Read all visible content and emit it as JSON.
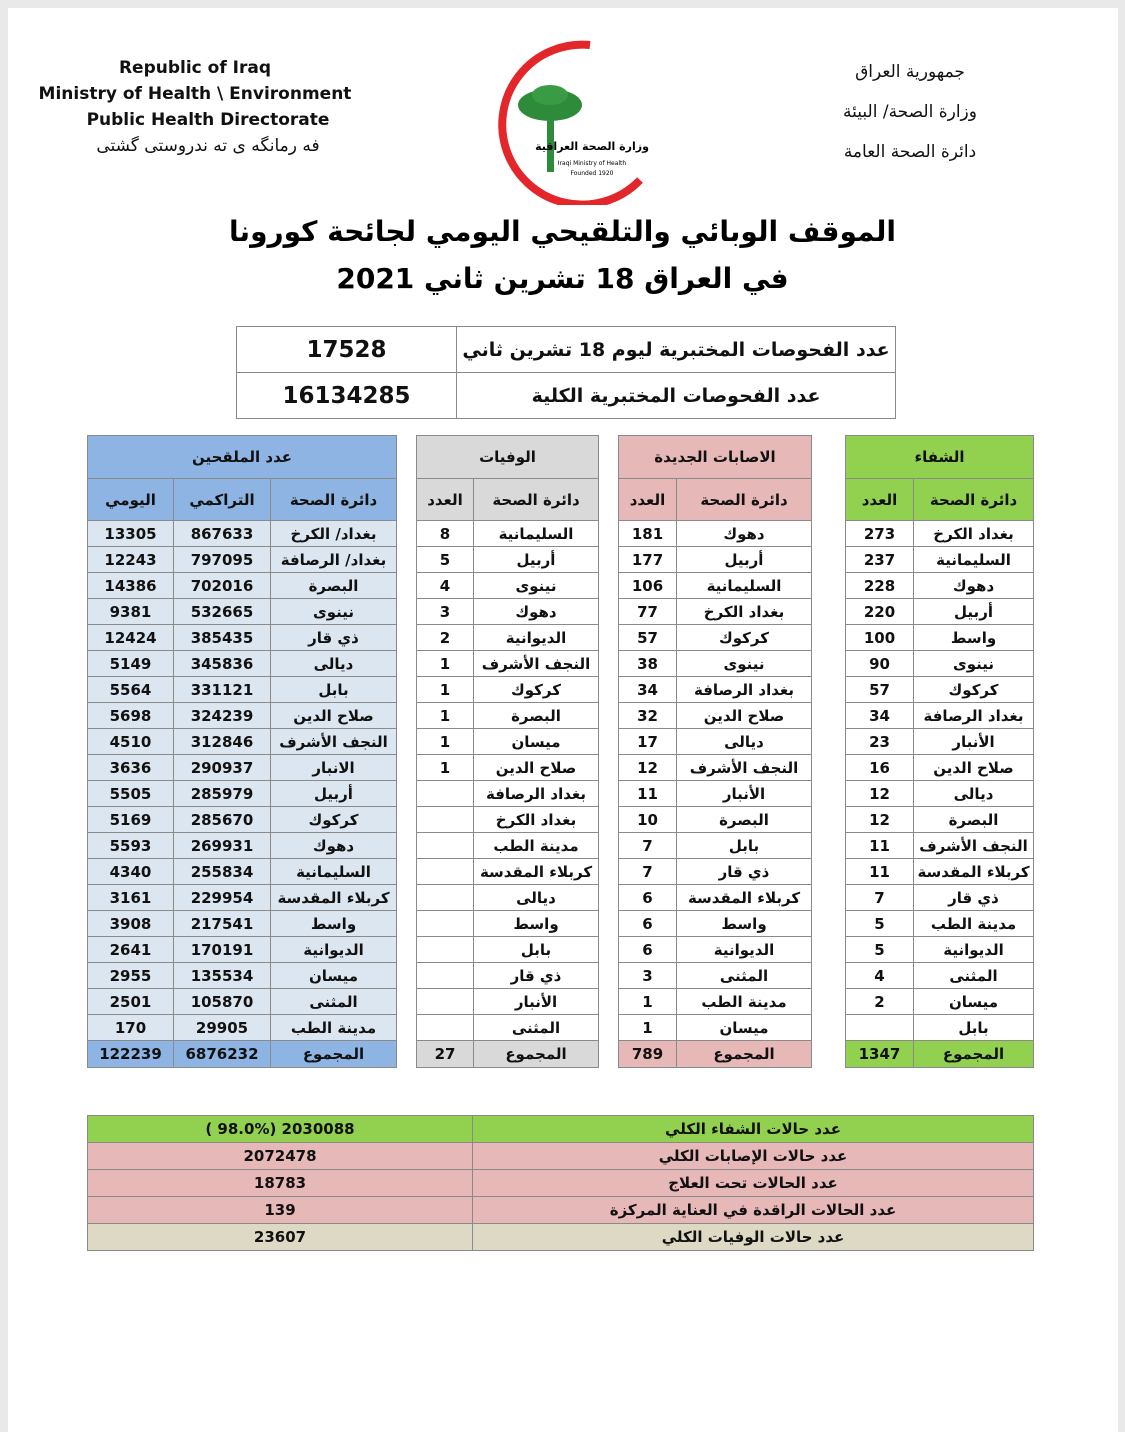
{
  "header": {
    "left_lines": [
      "Republic of Iraq",
      "Ministry of Health \\ Environment",
      "Public Health Directorate",
      "فه رمانگه ی ته ندروستی گشتی"
    ],
    "right_lines": [
      "جمهورية العراق",
      "وزارة الصحة/ البيئة",
      "دائرة الصحة العامة"
    ],
    "logo_lines": [
      "وزارة الصحة العراقية",
      "Iraqi Ministry of Health",
      "Founded 1920"
    ]
  },
  "title_lines": [
    "الموقف الوبائي والتلقيحي اليومي لجائحة كورونا",
    "في العراق  18  تشرين ثاني 2021"
  ],
  "tests": {
    "rows": [
      [
        "عدد الفحوصات المختبرية  ليوم 18 تشرين ثاني",
        17528
      ],
      [
        "عدد الفحوصات المختبرية الكلية",
        16134285
      ]
    ]
  },
  "recovered": {
    "title": "الشفاء",
    "headers": [
      "دائرة الصحة",
      "العدد"
    ],
    "rows": [
      [
        "بغداد الكرخ",
        273
      ],
      [
        "السليمانية",
        237
      ],
      [
        "دهوك",
        228
      ],
      [
        "أربيل",
        220
      ],
      [
        "واسط",
        100
      ],
      [
        "نينوى",
        90
      ],
      [
        "كركوك",
        57
      ],
      [
        "بغداد الرصافة",
        34
      ],
      [
        "الأنبار",
        23
      ],
      [
        "صلاح الدين",
        16
      ],
      [
        "ديالى",
        12
      ],
      [
        "البصرة",
        12
      ],
      [
        "النجف الأشرف",
        11
      ],
      [
        "كربلاء المقدسة",
        11
      ],
      [
        "ذي قار",
        7
      ],
      [
        "مدينة الطب",
        5
      ],
      [
        "الديوانية",
        5
      ],
      [
        "المثنى",
        4
      ],
      [
        "ميسان",
        2
      ],
      [
        "بابل",
        null
      ]
    ],
    "total": [
      "المجموع",
      1347
    ]
  },
  "new_cases": {
    "title": "الاصابات الجديدة",
    "headers": [
      "دائرة الصحة",
      "العدد"
    ],
    "rows": [
      [
        "دهوك",
        181
      ],
      [
        "أربيل",
        177
      ],
      [
        "السليمانية",
        106
      ],
      [
        "بغداد الكرخ",
        77
      ],
      [
        "كركوك",
        57
      ],
      [
        "نينوى",
        38
      ],
      [
        "بغداد الرصافة",
        34
      ],
      [
        "صلاح الدين",
        32
      ],
      [
        "ديالى",
        17
      ],
      [
        "النجف الأشرف",
        12
      ],
      [
        "الأنبار",
        11
      ],
      [
        "البصرة",
        10
      ],
      [
        "بابل",
        7
      ],
      [
        "ذي قار",
        7
      ],
      [
        "كربلاء المقدسة",
        6
      ],
      [
        "واسط",
        6
      ],
      [
        "الديوانية",
        6
      ],
      [
        "المثنى",
        3
      ],
      [
        "مدينة الطب",
        1
      ],
      [
        "ميسان",
        1
      ]
    ],
    "total": [
      "المجموع",
      789
    ]
  },
  "deaths": {
    "title": "الوفيات",
    "headers": [
      "دائرة الصحة",
      "العدد"
    ],
    "rows": [
      [
        "السليمانية",
        8
      ],
      [
        "أربيل",
        5
      ],
      [
        "نينوى",
        4
      ],
      [
        "دهوك",
        3
      ],
      [
        "الديوانية",
        2
      ],
      [
        "النجف الأشرف",
        1
      ],
      [
        "كركوك",
        1
      ],
      [
        "البصرة",
        1
      ],
      [
        "ميسان",
        1
      ],
      [
        "صلاح الدين",
        1
      ],
      [
        "بغداد الرصافة",
        null
      ],
      [
        "بغداد الكرخ",
        null
      ],
      [
        "مدينة الطب",
        null
      ],
      [
        "كربلاء المقدسة",
        null
      ],
      [
        "ديالى",
        null
      ],
      [
        "واسط",
        null
      ],
      [
        "بابل",
        null
      ],
      [
        "ذي قار",
        null
      ],
      [
        "الأنبار",
        null
      ],
      [
        "المثنى",
        null
      ]
    ],
    "total": [
      "المجموع",
      27
    ]
  },
  "vaccinated": {
    "title": "عدد الملقحين",
    "headers": [
      "دائرة الصحة",
      "التراكمي",
      "اليومي"
    ],
    "rows": [
      [
        "بغداد/ الكرخ",
        867633,
        13305
      ],
      [
        "بغداد/ الرصافة",
        797095,
        12243
      ],
      [
        "البصرة",
        702016,
        14386
      ],
      [
        "نينوى",
        532665,
        9381
      ],
      [
        "ذي قار",
        385435,
        12424
      ],
      [
        "ديالى",
        345836,
        5149
      ],
      [
        "بابل",
        331121,
        5564
      ],
      [
        "صلاح الدين",
        324239,
        5698
      ],
      [
        "النجف الأشرف",
        312846,
        4510
      ],
      [
        "الانبار",
        290937,
        3636
      ],
      [
        "أربيل",
        285979,
        5505
      ],
      [
        "كركوك",
        285670,
        5169
      ],
      [
        "دهوك",
        269931,
        5593
      ],
      [
        "السليمانية",
        255834,
        4340
      ],
      [
        "كربلاء المقدسة",
        229954,
        3161
      ],
      [
        "واسط",
        217541,
        3908
      ],
      [
        "الديوانية",
        170191,
        2641
      ],
      [
        "ميسان",
        135534,
        2955
      ],
      [
        "المثنى",
        105870,
        2501
      ],
      [
        "مدينة الطب",
        29905,
        170
      ]
    ],
    "total": [
      "المجموع",
      6876232,
      122239
    ]
  },
  "summary": {
    "rows": [
      [
        "عدد حالات الشفاء الكلي",
        "( 98.0%)  2030088"
      ],
      [
        "عدد حالات الإصابات الكلي",
        2072478
      ],
      [
        "عدد الحالات تحت العلاج",
        18783
      ],
      [
        "عدد الحالات الراقدة في العناية المركزة",
        139
      ],
      [
        "عدد حالات الوفيات الكلي",
        23607
      ]
    ]
  }
}
